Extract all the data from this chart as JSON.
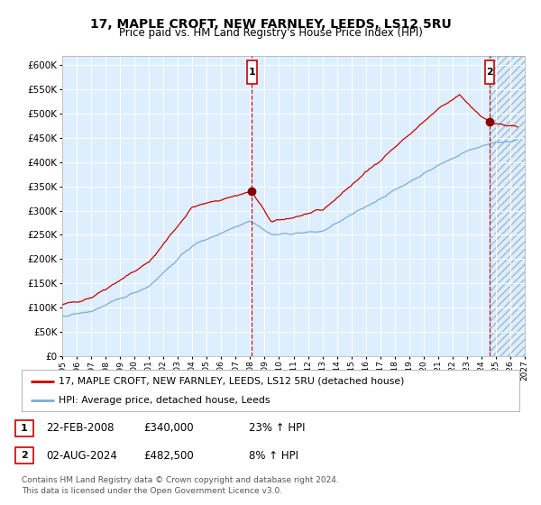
{
  "title": "17, MAPLE CROFT, NEW FARNLEY, LEEDS, LS12 5RU",
  "subtitle": "Price paid vs. HM Land Registry's House Price Index (HPI)",
  "legend_line1": "17, MAPLE CROFT, NEW FARNLEY, LEEDS, LS12 5RU (detached house)",
  "legend_line2": "HPI: Average price, detached house, Leeds",
  "annotation1_label": "1",
  "annotation1_date": "22-FEB-2008",
  "annotation1_price": "£340,000",
  "annotation1_hpi": "23% ↑ HPI",
  "annotation2_label": "2",
  "annotation2_date": "02-AUG-2024",
  "annotation2_price": "£482,500",
  "annotation2_hpi": "8% ↑ HPI",
  "footer": "Contains HM Land Registry data © Crown copyright and database right 2024.\nThis data is licensed under the Open Government Licence v3.0.",
  "red_line_color": "#cc0000",
  "blue_line_color": "#7aadd4",
  "bg_color": "#ddeeff",
  "grid_color": "#ffffff",
  "annotation_vline_color": "#cc0000",
  "dot_color": "#880000",
  "ylim_min": 0,
  "ylim_max": 620000,
  "x_start_year": 1995,
  "x_end_year": 2027,
  "sale1_year": 2008.13,
  "sale1_price": 340000,
  "sale2_year": 2024.58,
  "sale2_price": 482500
}
